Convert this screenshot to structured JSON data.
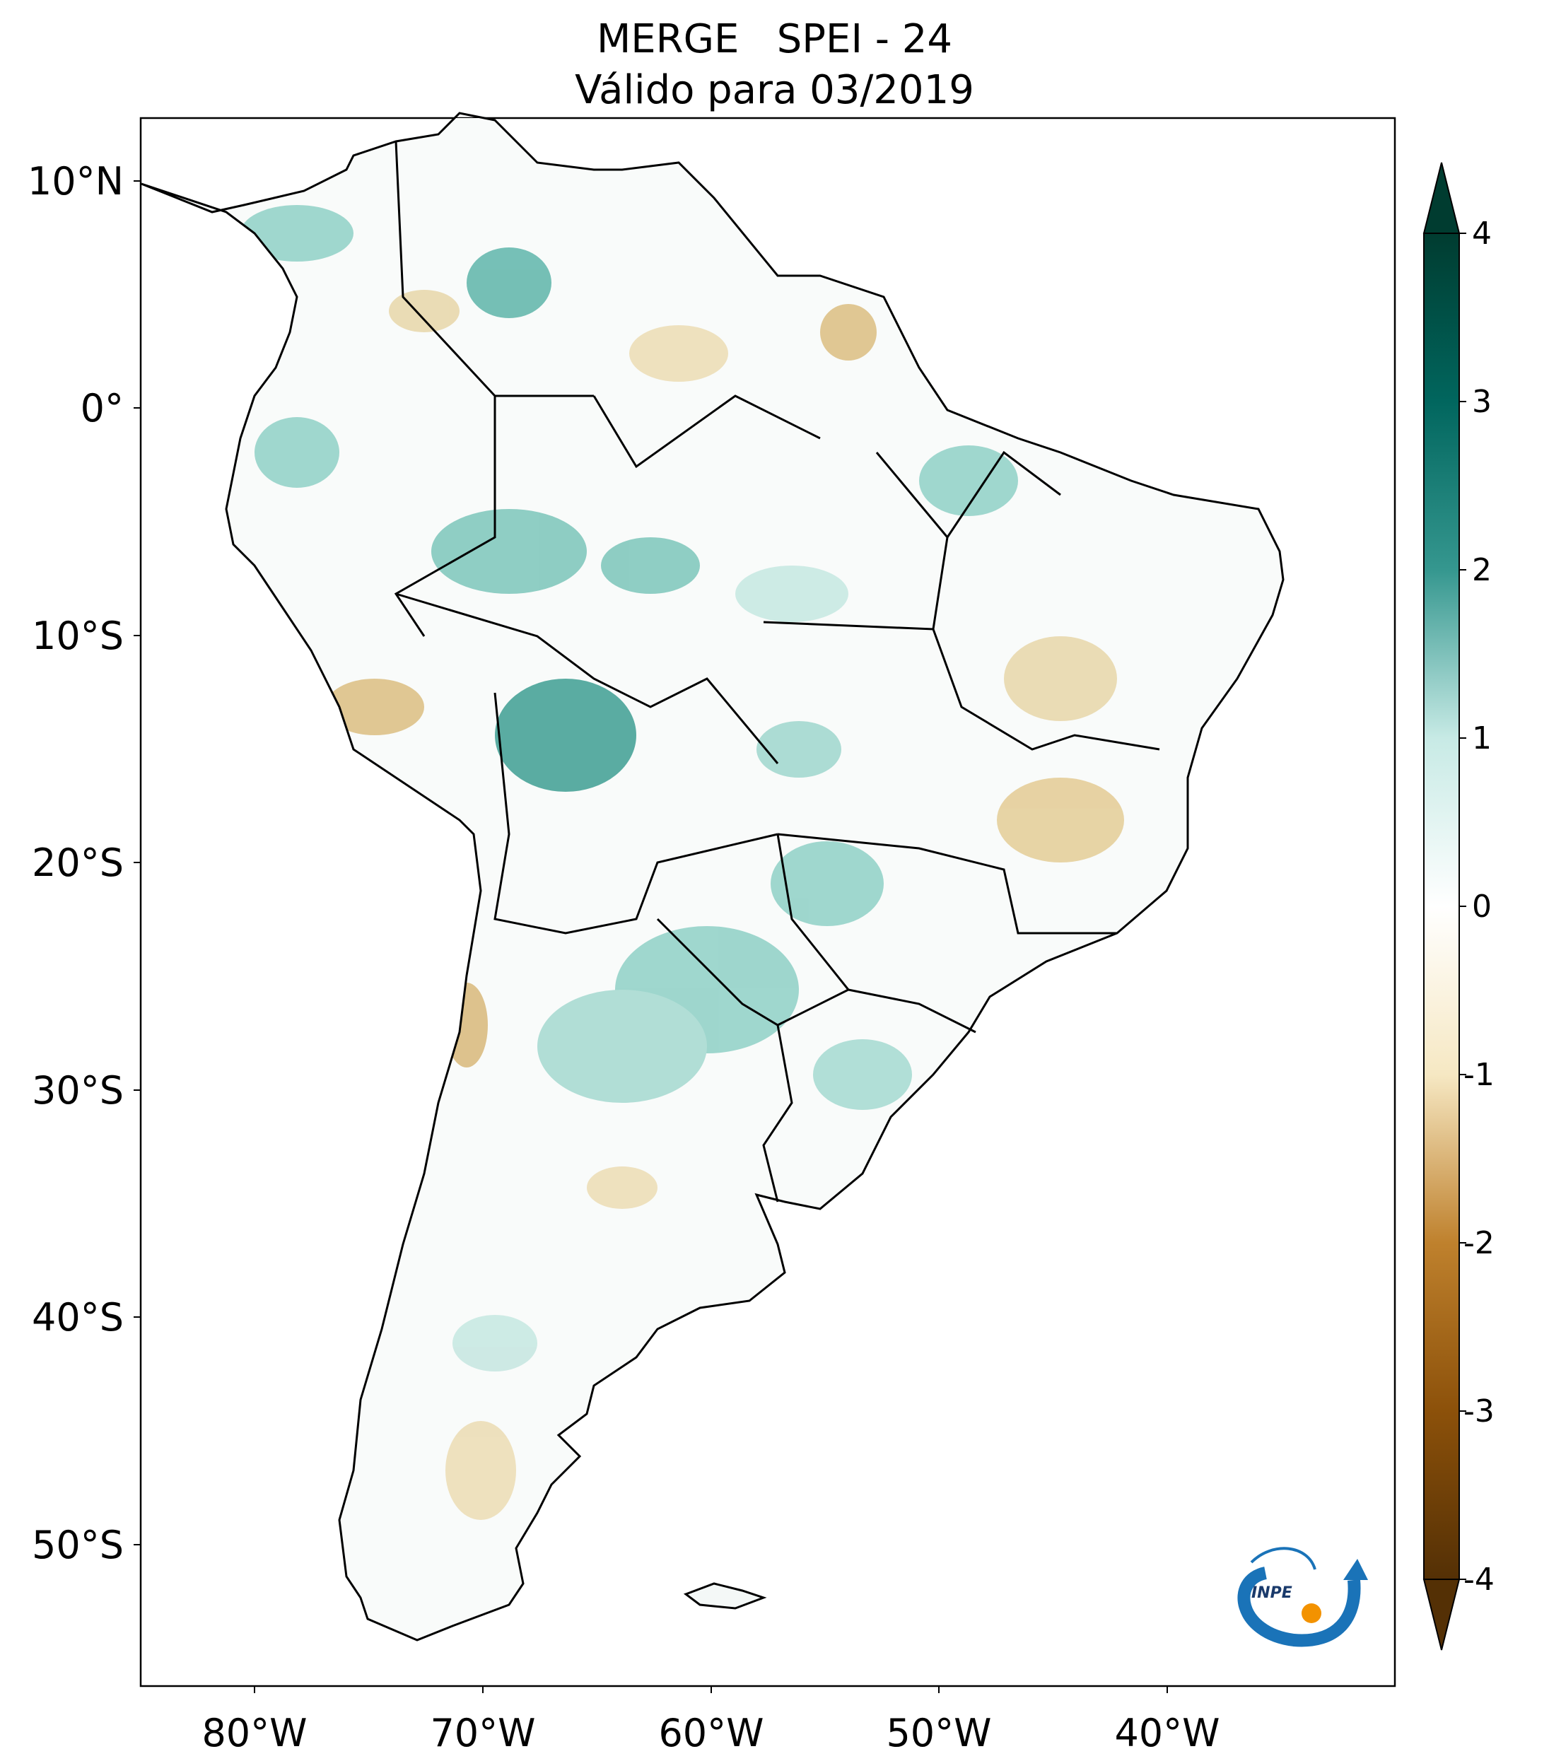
{
  "title": {
    "line1": "MERGE   SPEI - 24",
    "line2": "Válido para 03/2019"
  },
  "map": {
    "lon_range": [
      -85,
      -30
    ],
    "lat_range": [
      -56,
      13
    ],
    "x_ticks": [
      {
        "label": "80°W"
      },
      {
        "label": "70°W"
      },
      {
        "label": "60°W"
      },
      {
        "label": "50°W"
      },
      {
        "label": "40°W"
      }
    ],
    "y_ticks": [
      {
        "label": "10°N"
      },
      {
        "label": "0°"
      },
      {
        "label": "10°S"
      },
      {
        "label": "20°S"
      },
      {
        "label": "30°S"
      },
      {
        "label": "40°S"
      },
      {
        "label": "50°S"
      }
    ]
  },
  "colorbar": {
    "range": [
      -4,
      4
    ],
    "extend": "both",
    "ticks": [
      {
        "label": "4"
      },
      {
        "label": "3"
      },
      {
        "label": "2"
      },
      {
        "label": "1"
      },
      {
        "label": "0"
      },
      {
        "label": "-1"
      },
      {
        "label": "-2"
      },
      {
        "label": "-3"
      },
      {
        "label": "-4"
      }
    ],
    "colors": {
      "wettest": "#003c30",
      "wet": "#35978f",
      "moist": "#c7eae5",
      "neutral": "#f5f5f5",
      "dry_light": "#f6e8c3",
      "dry": "#bf812d",
      "driest": "#543005"
    }
  },
  "logo": {
    "text": "INPE",
    "colors": {
      "blue": "#1a73b8",
      "orange": "#f39200"
    }
  }
}
